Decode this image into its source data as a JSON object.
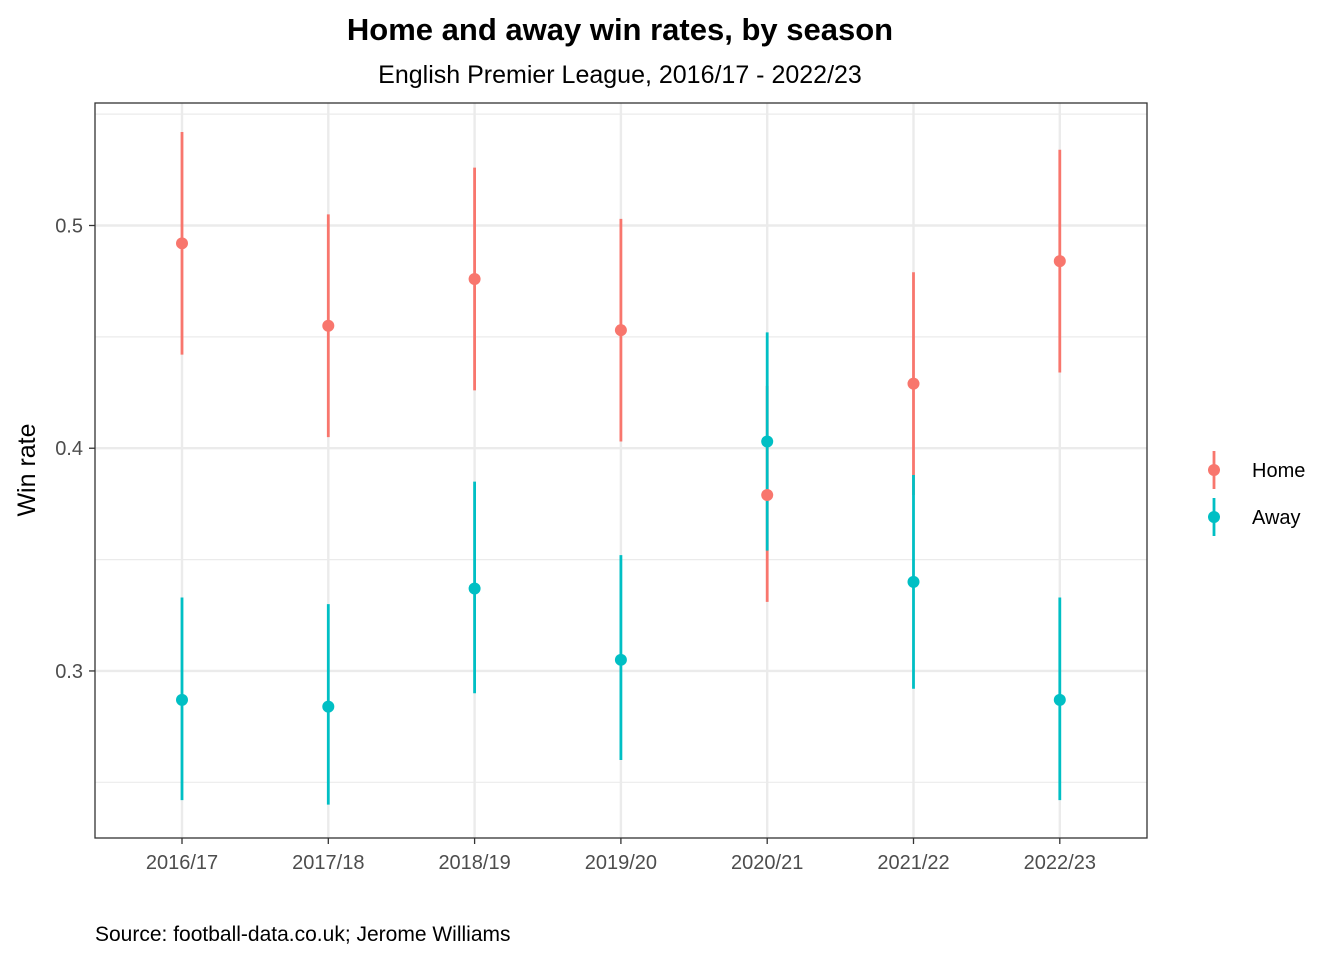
{
  "chart_data": {
    "type": "scatter",
    "title": "Home and away win rates, by season",
    "subtitle": "English Premier League, 2016/17 - 2022/23",
    "xlabel": "",
    "ylabel": "Win rate",
    "caption": "Source: football-data.co.uk; Jerome Williams",
    "categories": [
      "2016/17",
      "2017/18",
      "2018/19",
      "2019/20",
      "2020/21",
      "2021/22",
      "2022/23"
    ],
    "ylim": [
      0.225,
      0.555
    ],
    "yticks": [
      0.3,
      0.4,
      0.5
    ],
    "ytick_labels": [
      "0.3",
      "0.4",
      "0.5"
    ],
    "grid": true,
    "legend_position": "right",
    "series": [
      {
        "name": "Home",
        "color": "#F8766D",
        "values": [
          0.492,
          0.455,
          0.476,
          0.453,
          0.379,
          0.429,
          0.484
        ],
        "lower": [
          0.442,
          0.405,
          0.426,
          0.403,
          0.331,
          0.379,
          0.434
        ],
        "upper": [
          0.542,
          0.505,
          0.526,
          0.503,
          0.428,
          0.479,
          0.534
        ]
      },
      {
        "name": "Away",
        "color": "#00BFC4",
        "values": [
          0.287,
          0.284,
          0.337,
          0.305,
          0.403,
          0.34,
          0.287
        ],
        "lower": [
          0.242,
          0.24,
          0.29,
          0.26,
          0.354,
          0.292,
          0.242
        ],
        "upper": [
          0.333,
          0.33,
          0.385,
          0.352,
          0.452,
          0.388,
          0.333
        ]
      }
    ]
  }
}
